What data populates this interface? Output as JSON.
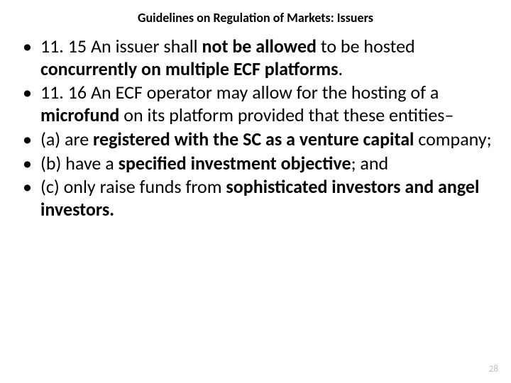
{
  "title": "Guidelines on Regulation of Markets: Issuers",
  "colors": {
    "background": "#ffffff",
    "text": "#000000",
    "page_number": "#bfbfbf"
  },
  "typography": {
    "title_fontsize": 18,
    "title_weight": 700,
    "body_fontsize": 26,
    "font_family": "Calibri"
  },
  "bullets": [
    {
      "parts": [
        {
          "text": "11. 15 An issuer shall ",
          "bold": false
        },
        {
          "text": "not be allowed ",
          "bold": true
        },
        {
          "text": "to be hosted ",
          "bold": false
        },
        {
          "text": "concurrently on multiple ECF platforms",
          "bold": true
        },
        {
          "text": ".",
          "bold": false
        }
      ]
    },
    {
      "parts": [
        {
          "text": "11. 16 An ECF operator may allow for the hosting of a ",
          "bold": false
        },
        {
          "text": "microfund ",
          "bold": true
        },
        {
          "text": "on its platform provided that these entities–",
          "bold": false
        }
      ]
    },
    {
      "parts": [
        {
          "text": "(a) are ",
          "bold": false
        },
        {
          "text": "registered with the SC as a venture capital ",
          "bold": true
        },
        {
          "text": "company;",
          "bold": false
        }
      ]
    },
    {
      "parts": [
        {
          "text": "(b) have a ",
          "bold": false
        },
        {
          "text": "specified investment objective",
          "bold": true
        },
        {
          "text": "; and",
          "bold": false
        }
      ]
    },
    {
      "parts": [
        {
          "text": "(c) only raise funds from ",
          "bold": false
        },
        {
          "text": "sophisticated investors and angel investors.",
          "bold": true
        }
      ]
    }
  ],
  "page_number": "28",
  "bullet_marker": "•"
}
